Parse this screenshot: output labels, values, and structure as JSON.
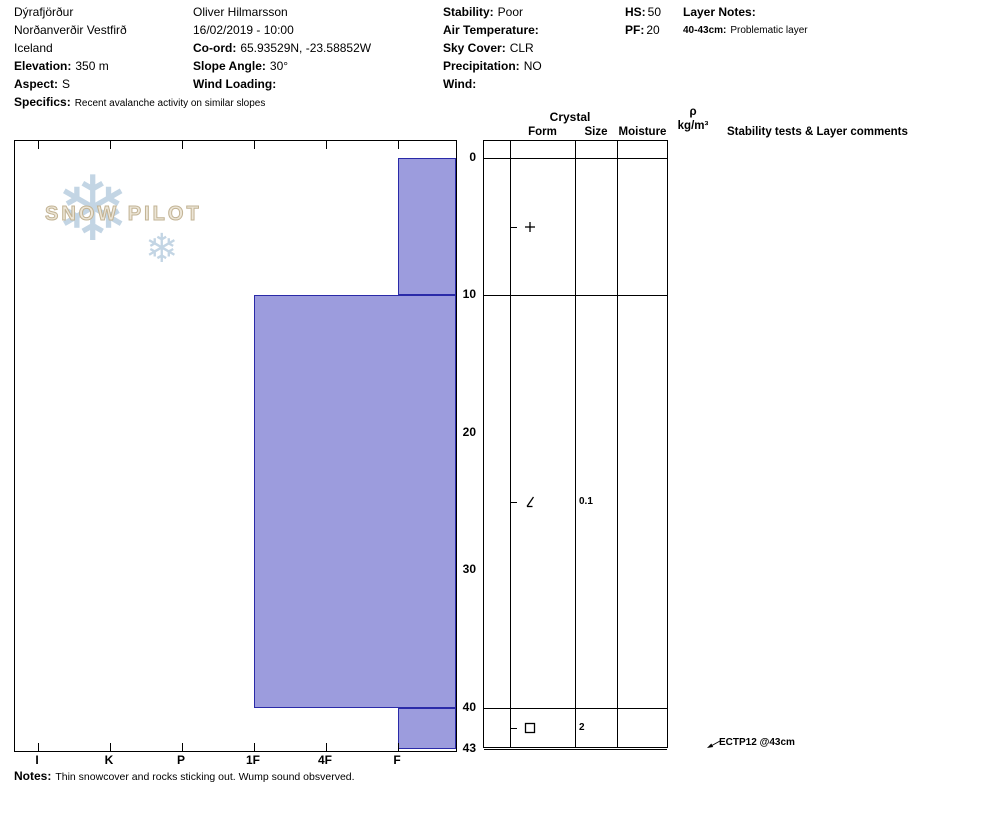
{
  "header": {
    "location_line1": "Dýrafjörður",
    "location_line2": "Norðanverðir Vestfirð",
    "location_line3": "Iceland",
    "elevation_label": "Elevation:",
    "elevation_value": "350 m",
    "aspect_label": "Aspect:",
    "aspect_value": "S",
    "specifics_label": "Specifics:",
    "specifics_value": "Recent avalanche activity on similar slopes",
    "observer": "Oliver Hilmarsson",
    "datetime": "16/02/2019 - 10:00",
    "coord_label": "Co-ord:",
    "coord_value": "65.93529N, -23.58852W",
    "slope_angle_label": "Slope Angle:",
    "slope_angle_value": "30°",
    "wind_loading_label": "Wind Loading:",
    "wind_loading_value": "",
    "stability_label": "Stability:",
    "stability_value": "Poor",
    "air_temperature_label": "Air Temperature:",
    "air_temperature_value": "",
    "sky_cover_label": "Sky Cover:",
    "sky_cover_value": "CLR",
    "precipitation_label": "Precipitation:",
    "precipitation_value": "NO",
    "wind_label": "Wind:",
    "wind_value": "",
    "hs_label": "HS:",
    "hs_value": "50",
    "pf_label": "PF:",
    "pf_value": "20",
    "layer_notes_label": "Layer Notes:",
    "layer_note_key": "40-43cm:",
    "layer_note_text": "Problematic layer"
  },
  "logo": {
    "text": "SNOW PILOT"
  },
  "chart_data": {
    "type": "bar",
    "subtype": "snow-pit-hardness-profile",
    "hardness_axis": [
      "I",
      "K",
      "P",
      "1F",
      "4F",
      "F"
    ],
    "depth_ticks": [
      0,
      10,
      20,
      30,
      40,
      43
    ],
    "depth_unit": "cm",
    "total_depth_cm": 43,
    "layers": [
      {
        "top_cm": 0,
        "bottom_cm": 10,
        "hardness": "F",
        "form_symbol": "plus",
        "size_mm": ""
      },
      {
        "top_cm": 10,
        "bottom_cm": 40,
        "hardness": "1F",
        "form_symbol": "df-slash",
        "size_mm": "0.1"
      },
      {
        "top_cm": 40,
        "bottom_cm": 43,
        "hardness": "F",
        "form_symbol": "square",
        "size_mm": "2"
      }
    ],
    "bar_fill": "#9c9cdd",
    "bar_border": "#2a2aa8"
  },
  "table": {
    "crystal_header": "Crystal",
    "form_header": "Form",
    "size_header": "Size",
    "moisture_header": "Moisture",
    "density_symbol": "ρ",
    "density_unit": "kg/m³",
    "stability_header": "Stability tests & Layer comments",
    "test_annotation": "ECTP12 @43cm"
  },
  "notes": {
    "label": "Notes:",
    "text": "Thin snowcover and rocks sticking out. Wump sound obsverved."
  }
}
